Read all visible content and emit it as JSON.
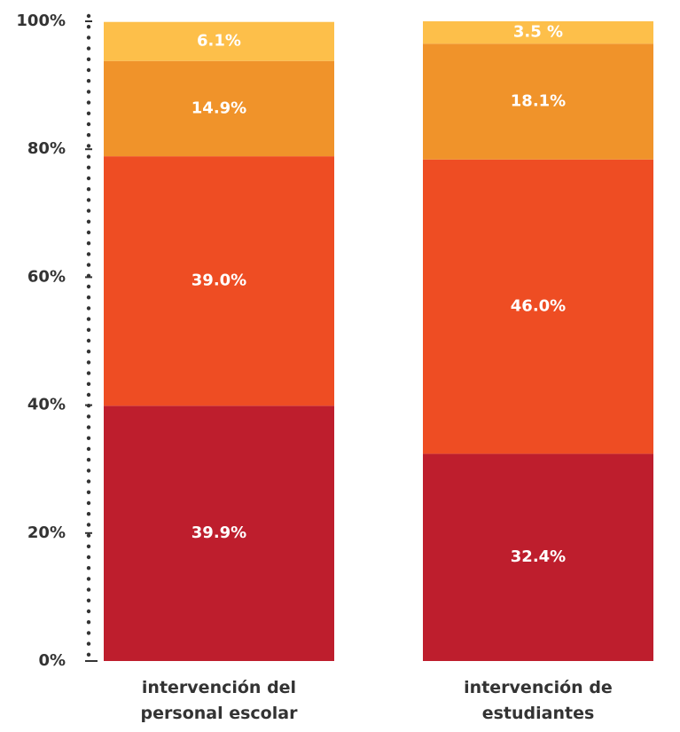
{
  "chart_data": {
    "type": "stacked_bar",
    "categories": [
      "intervención del\npersonal escolar",
      "intervención de\nestudiantes"
    ],
    "series": [
      {
        "color": "#be1e2d",
        "values": [
          39.9,
          32.4
        ],
        "value_labels": [
          "39.9%",
          "32.4%"
        ]
      },
      {
        "color": "#ee4d23",
        "values": [
          39.0,
          46.0
        ],
        "value_labels": [
          "39.0%",
          "46.0%"
        ]
      },
      {
        "color": "#f0932a",
        "values": [
          14.9,
          18.1
        ],
        "value_labels": [
          "14.9%",
          "18.1%"
        ]
      },
      {
        "color": "#fdbf4a",
        "values": [
          6.1,
          3.5
        ],
        "value_labels": [
          "6.1%",
          "3.5 %"
        ]
      }
    ],
    "ylim": [
      0,
      100
    ],
    "yticks": [
      {
        "value": 0,
        "label": "0%"
      },
      {
        "value": 20,
        "label": "20%"
      },
      {
        "value": 40,
        "label": "40%"
      },
      {
        "value": 60,
        "label": "60%"
      },
      {
        "value": 80,
        "label": "80%"
      },
      {
        "value": 100,
        "label": "100%"
      }
    ]
  }
}
